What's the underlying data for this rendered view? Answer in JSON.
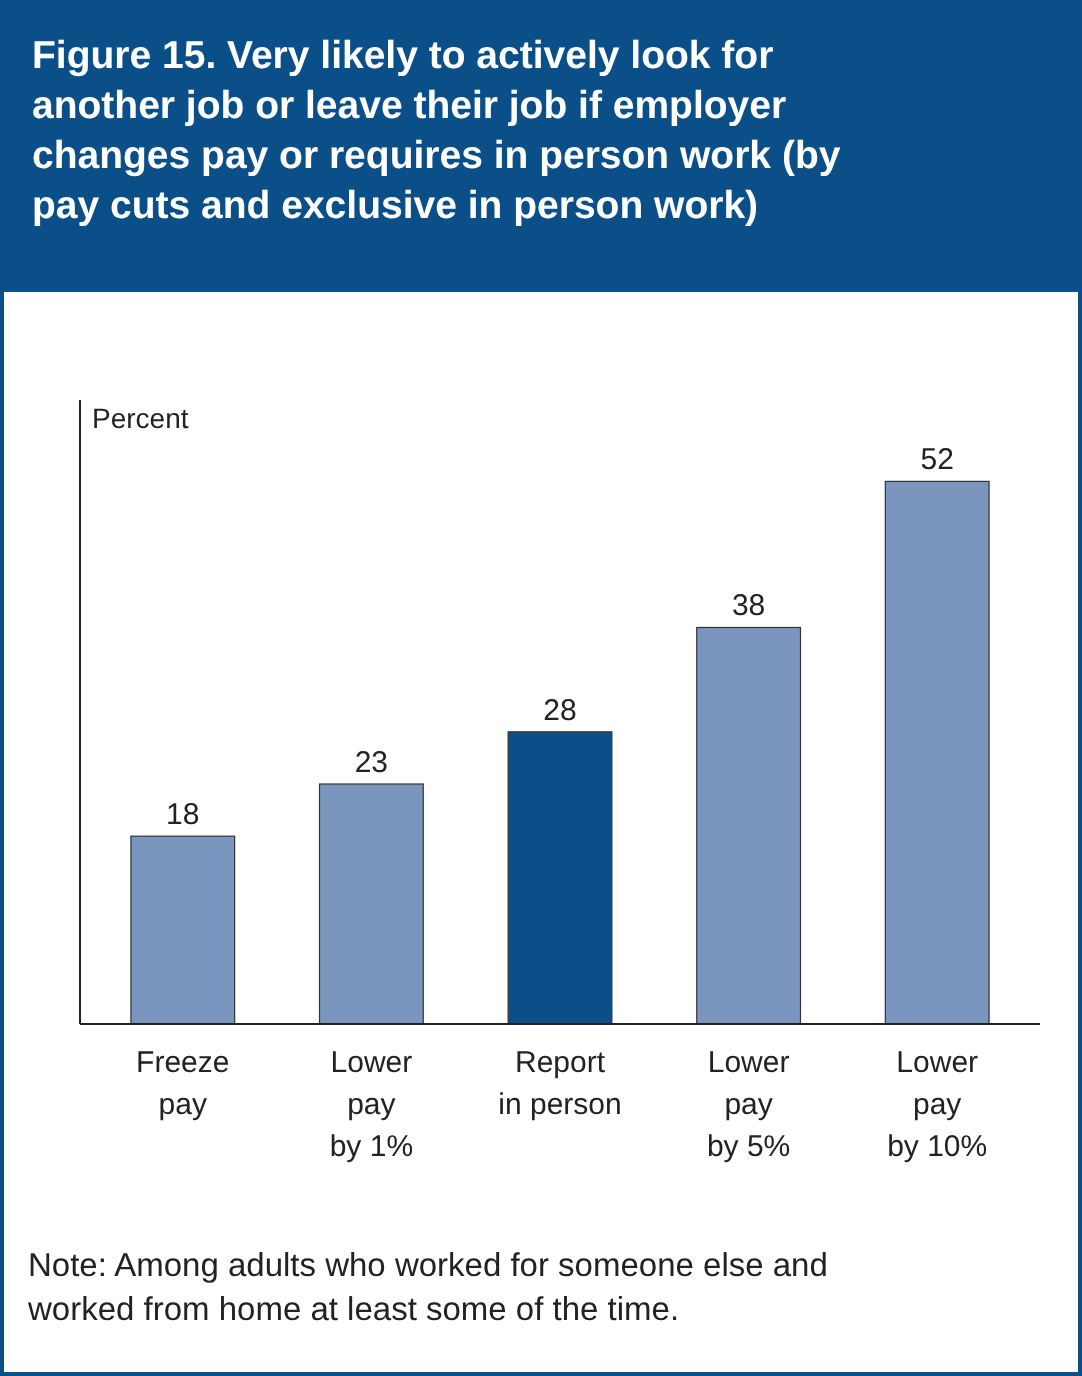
{
  "chart_data": {
    "type": "bar",
    "title": "Figure 15. Very likely to actively look for another job or leave their job if employer changes pay or requires in person work (by pay cuts and exclusive in person work)",
    "ylabel": "Percent",
    "categories": [
      "Freeze\npay",
      "Lower\npay\nby 1%",
      "Report\nin person",
      "Lower\npay\nby 5%",
      "Lower\npay\nby 10%"
    ],
    "values": [
      18,
      23,
      28,
      38,
      52
    ],
    "colors": [
      "#7b96be",
      "#7b96be",
      "#0b4f88",
      "#7b96be",
      "#7b96be"
    ],
    "data_labels": true,
    "annotations": [
      "Note: Among adults who worked for someone else and worked from home at least some of the time."
    ]
  }
}
